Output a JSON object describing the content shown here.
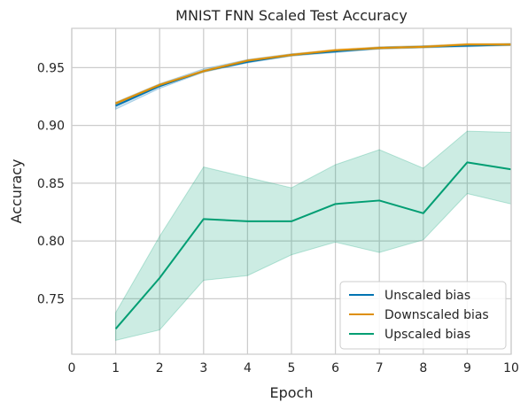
{
  "chart_data": {
    "type": "line",
    "title": "MNIST FNN Scaled Test Accuracy",
    "xlabel": "Epoch",
    "ylabel": "Accuracy",
    "xlim": [
      0,
      10
    ],
    "ylim": [
      0.702,
      0.984
    ],
    "xticks": [
      0,
      1,
      2,
      3,
      4,
      5,
      6,
      7,
      8,
      9,
      10
    ],
    "yticks": [
      0.75,
      0.8,
      0.85,
      0.9,
      0.95
    ],
    "ytick_labels": [
      "0.75",
      "0.80",
      "0.85",
      "0.90",
      "0.95"
    ],
    "grid": true,
    "legend_position": "bottom-right",
    "x": [
      1,
      2,
      3,
      4,
      5,
      6,
      7,
      8,
      9,
      10
    ],
    "series": [
      {
        "name": "Unscaled bias",
        "color": "#0173b2",
        "values": [
          0.917,
          0.934,
          0.947,
          0.955,
          0.961,
          0.964,
          0.967,
          0.968,
          0.969,
          0.97
        ],
        "lower": [
          0.914,
          0.932,
          0.946,
          0.954,
          0.96,
          0.963,
          0.966,
          0.967,
          0.968,
          0.969
        ],
        "upper": [
          0.92,
          0.936,
          0.949,
          0.957,
          0.962,
          0.965,
          0.968,
          0.969,
          0.97,
          0.971
        ]
      },
      {
        "name": "Downscaled bias",
        "color": "#de8f05",
        "values": [
          0.919,
          0.935,
          0.947,
          0.956,
          0.961,
          0.965,
          0.967,
          0.968,
          0.97,
          0.97
        ],
        "lower": [
          0.918,
          0.934,
          0.946,
          0.955,
          0.96,
          0.964,
          0.966,
          0.967,
          0.969,
          0.969
        ],
        "upper": [
          0.92,
          0.936,
          0.948,
          0.957,
          0.962,
          0.966,
          0.968,
          0.969,
          0.971,
          0.971
        ]
      },
      {
        "name": "Upscaled bias",
        "color": "#029e73",
        "values": [
          0.724,
          0.768,
          0.819,
          0.817,
          0.817,
          0.832,
          0.835,
          0.824,
          0.868,
          0.862
        ],
        "lower": [
          0.714,
          0.723,
          0.766,
          0.77,
          0.788,
          0.799,
          0.79,
          0.801,
          0.841,
          0.832
        ],
        "upper": [
          0.738,
          0.804,
          0.864,
          0.855,
          0.846,
          0.866,
          0.879,
          0.863,
          0.895,
          0.894
        ]
      }
    ]
  }
}
